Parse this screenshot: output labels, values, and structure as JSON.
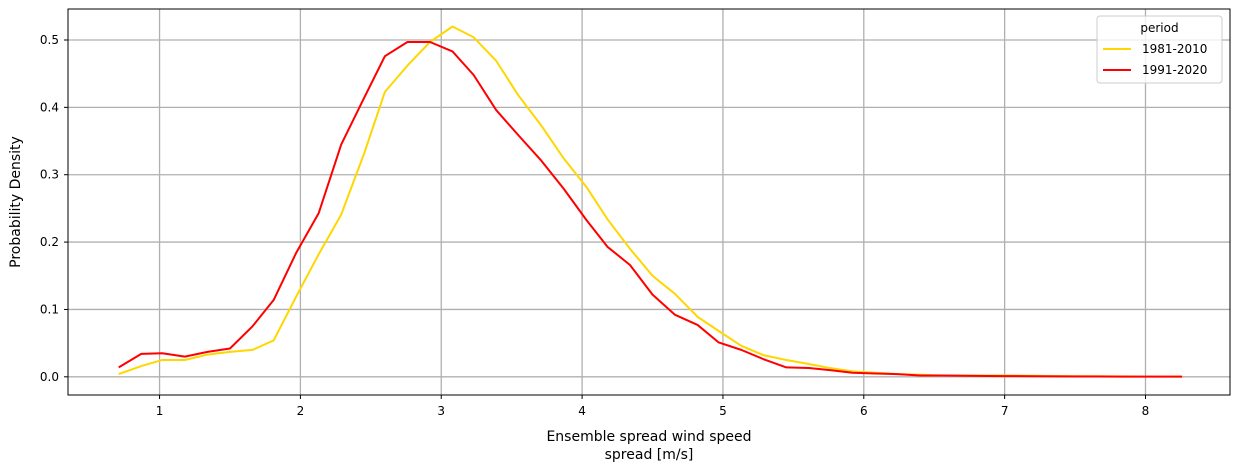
{
  "chart_data": {
    "type": "line",
    "xlabel_line1": "Ensemble spread wind speed",
    "xlabel_line2": "spread [m/s]",
    "ylabel": "Probability Density",
    "xlim": [
      0.35,
      8.6
    ],
    "ylim": [
      -0.027,
      0.546
    ],
    "xticks": [
      1,
      2,
      3,
      4,
      5,
      6,
      7,
      8
    ],
    "yticks": [
      0.0,
      0.1,
      0.2,
      0.3,
      0.4,
      0.5
    ],
    "grid": true,
    "legend": {
      "title": "period",
      "placement": "upper right"
    },
    "series": [
      {
        "name": "1981-2010",
        "color": "#FFD700",
        "points": [
          [
            0.71,
            0.004
          ],
          [
            0.87,
            0.016
          ],
          [
            1.02,
            0.025
          ],
          [
            1.18,
            0.025
          ],
          [
            1.34,
            0.033
          ],
          [
            1.5,
            0.037
          ],
          [
            1.66,
            0.04
          ],
          [
            1.81,
            0.054
          ],
          [
            1.97,
            0.119
          ],
          [
            2.13,
            0.182
          ],
          [
            2.29,
            0.241
          ],
          [
            2.45,
            0.33
          ],
          [
            2.6,
            0.423
          ],
          [
            2.76,
            0.462
          ],
          [
            2.92,
            0.497
          ],
          [
            3.08,
            0.52
          ],
          [
            3.23,
            0.504
          ],
          [
            3.39,
            0.469
          ],
          [
            3.55,
            0.417
          ],
          [
            3.71,
            0.373
          ],
          [
            3.87,
            0.324
          ],
          [
            4.03,
            0.282
          ],
          [
            4.18,
            0.234
          ],
          [
            4.34,
            0.19
          ],
          [
            4.5,
            0.15
          ],
          [
            4.66,
            0.123
          ],
          [
            4.82,
            0.089
          ],
          [
            4.97,
            0.068
          ],
          [
            5.13,
            0.046
          ],
          [
            5.29,
            0.032
          ],
          [
            5.45,
            0.025
          ],
          [
            5.61,
            0.019
          ],
          [
            5.76,
            0.013
          ],
          [
            5.92,
            0.008
          ],
          [
            6.08,
            0.006
          ],
          [
            6.24,
            0.004
          ],
          [
            6.4,
            0.003
          ],
          [
            6.55,
            0.002
          ],
          [
            6.71,
            0.002
          ],
          [
            6.87,
            0.002
          ],
          [
            7.03,
            0.002
          ],
          [
            7.19,
            0.0015
          ],
          [
            7.34,
            0.0012
          ],
          [
            7.5,
            0.001
          ],
          [
            7.66,
            0.0008
          ],
          [
            7.82,
            0.0006
          ],
          [
            7.98,
            0.0005
          ],
          [
            8.13,
            0.0004
          ],
          [
            8.26,
            0.0003
          ]
        ]
      },
      {
        "name": "1991-2020",
        "color": "#FF0000",
        "points": [
          [
            0.71,
            0.014
          ],
          [
            0.87,
            0.034
          ],
          [
            1.02,
            0.035
          ],
          [
            1.18,
            0.03
          ],
          [
            1.34,
            0.037
          ],
          [
            1.5,
            0.042
          ],
          [
            1.66,
            0.075
          ],
          [
            1.81,
            0.114
          ],
          [
            1.97,
            0.184
          ],
          [
            2.13,
            0.243
          ],
          [
            2.29,
            0.345
          ],
          [
            2.45,
            0.413
          ],
          [
            2.6,
            0.476
          ],
          [
            2.76,
            0.497
          ],
          [
            2.92,
            0.497
          ],
          [
            3.08,
            0.483
          ],
          [
            3.23,
            0.448
          ],
          [
            3.39,
            0.396
          ],
          [
            3.55,
            0.358
          ],
          [
            3.71,
            0.321
          ],
          [
            3.87,
            0.279
          ],
          [
            4.03,
            0.233
          ],
          [
            4.18,
            0.193
          ],
          [
            4.34,
            0.166
          ],
          [
            4.5,
            0.122
          ],
          [
            4.66,
            0.092
          ],
          [
            4.82,
            0.077
          ],
          [
            4.97,
            0.051
          ],
          [
            5.13,
            0.04
          ],
          [
            5.29,
            0.026
          ],
          [
            5.45,
            0.014
          ],
          [
            5.61,
            0.013
          ],
          [
            5.76,
            0.01
          ],
          [
            5.92,
            0.006
          ],
          [
            6.08,
            0.005
          ],
          [
            6.24,
            0.004
          ],
          [
            6.4,
            0.002
          ],
          [
            6.55,
            0.002
          ],
          [
            6.71,
            0.0015
          ],
          [
            6.87,
            0.0012
          ],
          [
            7.03,
            0.001
          ],
          [
            7.19,
            0.0008
          ],
          [
            7.34,
            0.0006
          ],
          [
            7.5,
            0.0005
          ],
          [
            7.66,
            0.0004
          ],
          [
            7.82,
            0.0003
          ],
          [
            7.98,
            0.0003
          ],
          [
            8.13,
            0.0002
          ],
          [
            8.26,
            0.0002
          ]
        ]
      }
    ]
  }
}
